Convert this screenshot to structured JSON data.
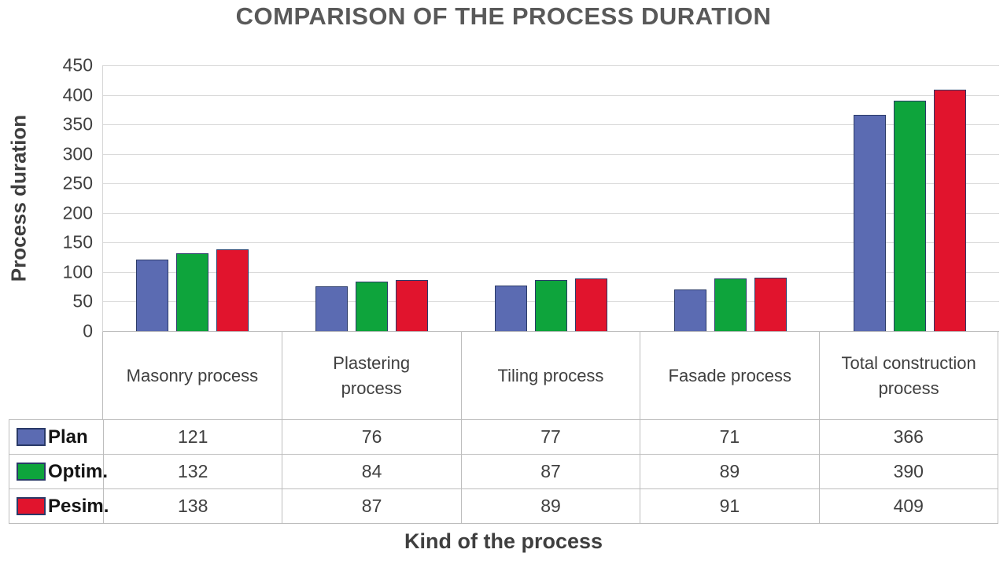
{
  "chart_data": {
    "type": "bar",
    "title": "COMPARISON OF THE PROCESS DURATION",
    "xlabel": "Kind of the process",
    "ylabel": "Process duration",
    "ylim": [
      0,
      450
    ],
    "ytick_step": 50,
    "yticks": [
      450,
      400,
      350,
      300,
      250,
      200,
      150,
      100,
      50,
      0
    ],
    "grid": true,
    "legend_position": "table-left",
    "categories": [
      "Masonry process",
      "Plastering process",
      "Tiling process",
      "Fasade process",
      "Total construction process"
    ],
    "series": [
      {
        "name": "Plan",
        "color": "#5b6bb2",
        "values": [
          121,
          76,
          77,
          71,
          366
        ]
      },
      {
        "name": "Optim.",
        "color": "#0ea43c",
        "values": [
          132,
          84,
          87,
          89,
          390
        ]
      },
      {
        "name": "Pesim.",
        "color": "#e1142d",
        "values": [
          138,
          87,
          89,
          91,
          409
        ]
      }
    ],
    "colors": {
      "title_text": "#595959",
      "axis_text": "#404040",
      "gridline": "#d9d9d9",
      "table_border": "#bdbdbd",
      "bar_border": "#2a3a68"
    }
  }
}
